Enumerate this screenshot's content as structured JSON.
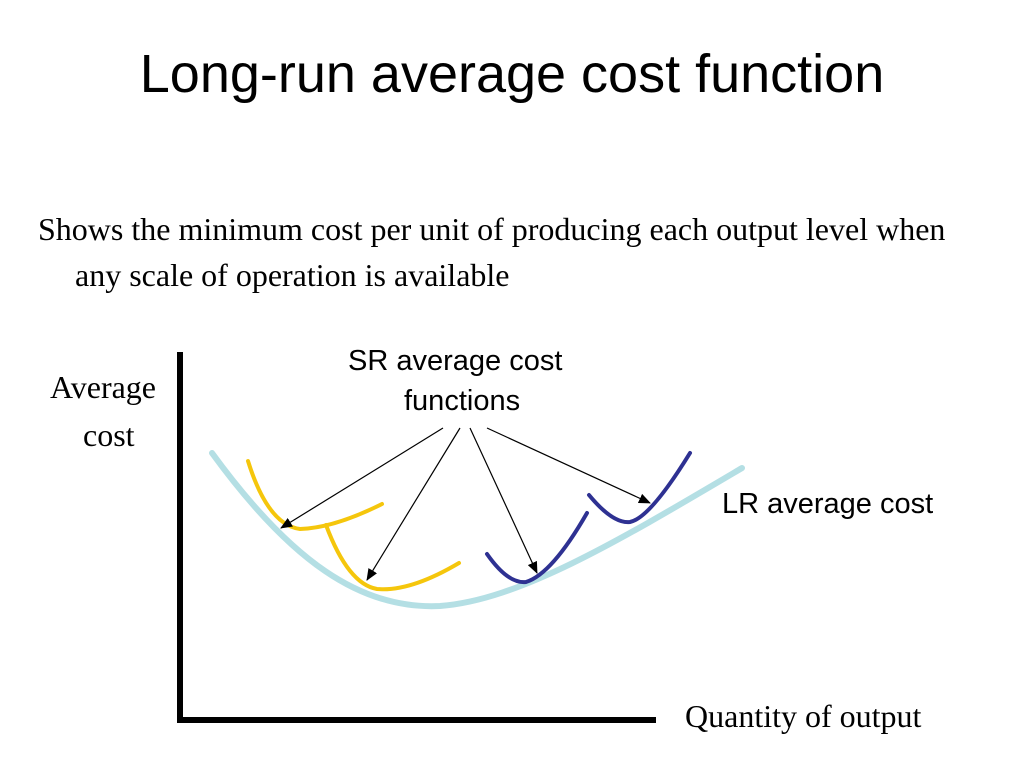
{
  "slide": {
    "title": "Long-run average cost function",
    "body": "Shows the minimum cost per unit of producing each output level when any scale of operation is available"
  },
  "diagram": {
    "y_axis_label_line1": "Average",
    "y_axis_label_line2": "cost",
    "x_axis_label": "Quantity of output",
    "sr_label_line1": "SR average cost",
    "sr_label_line2": "functions",
    "lr_label": "LR average cost",
    "colors": {
      "lr_curve": "#b4dfe4",
      "sr_yellow": "#f5c60c",
      "sr_blue": "#2e3192",
      "axes": "#000000",
      "arrows": "#000000"
    }
  }
}
